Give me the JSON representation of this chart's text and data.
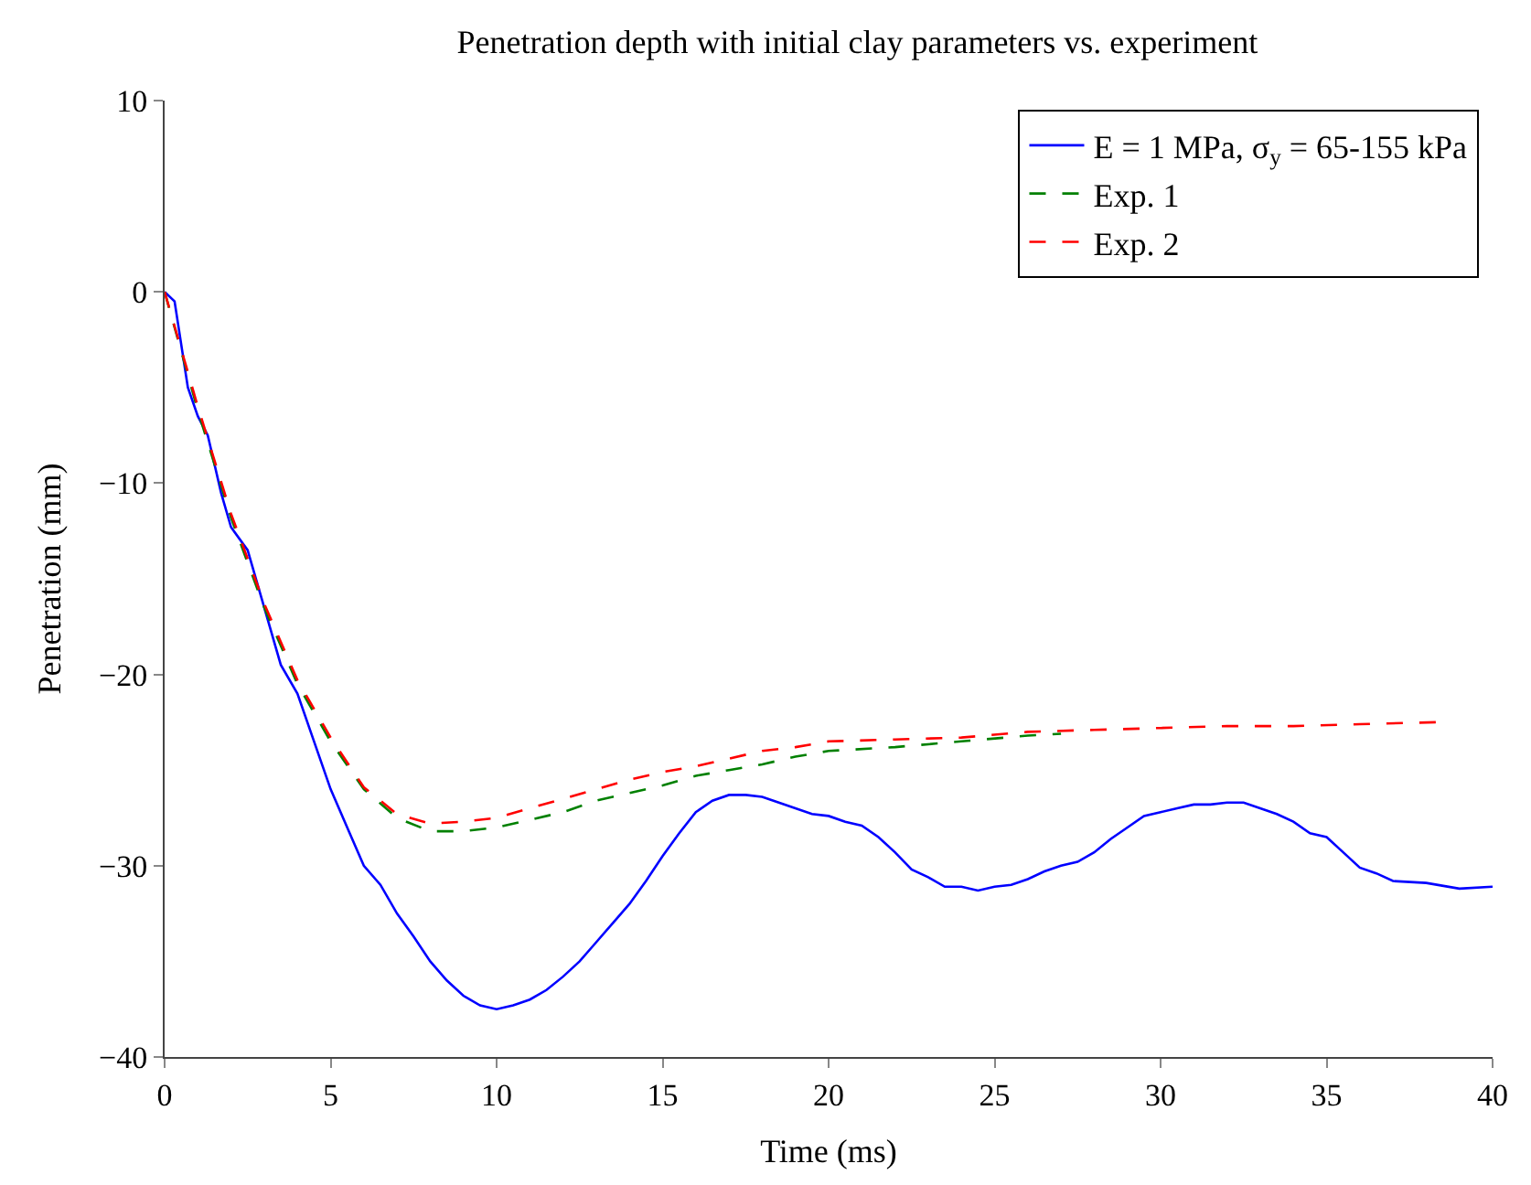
{
  "chart_data": {
    "type": "line",
    "title": "Penetration depth with initial clay parameters vs. experiment",
    "xlabel": "Time (ms)",
    "ylabel": "Penetration (mm)",
    "xlim": [
      0,
      40
    ],
    "ylim": [
      -40,
      10
    ],
    "xticks": [
      0,
      5,
      10,
      15,
      20,
      25,
      30,
      35,
      40
    ],
    "yticks": [
      -40,
      -30,
      -20,
      -10,
      0,
      10
    ],
    "legend": "top right",
    "series": [
      {
        "name": "E = 1 MPa, σ$_{y}$ = 65-155 kPa",
        "color": "#0000ff",
        "line_style": "solid",
        "x": [
          0,
          0.3,
          0.7,
          1,
          1.3,
          1.7,
          2,
          2.5,
          3,
          3.5,
          4,
          4.5,
          5,
          5.5,
          6,
          6.5,
          7,
          7.5,
          8,
          8.5,
          9,
          9.5,
          10,
          10.5,
          11,
          11.5,
          12,
          12.5,
          13,
          13.5,
          14,
          14.5,
          15,
          15.5,
          16,
          16.5,
          17,
          17.5,
          18,
          18.5,
          19,
          19.5,
          20,
          20.5,
          21,
          21.5,
          22,
          22.5,
          23,
          23.5,
          24,
          24.5,
          25,
          25.5,
          26,
          26.5,
          27,
          27.5,
          28,
          28.5,
          29,
          29.5,
          30,
          30.5,
          31,
          31.5,
          32,
          32.5,
          33,
          33.5,
          34,
          34.5,
          35,
          35.5,
          36,
          36.5,
          37,
          38,
          39,
          40
        ],
        "values": [
          0,
          -0.5,
          -5,
          -6.5,
          -7.5,
          -10.5,
          -12.3,
          -13.5,
          -16.5,
          -19.5,
          -21,
          -23.5,
          -26,
          -28,
          -30,
          -31,
          -32.5,
          -33.7,
          -35,
          -36,
          -36.8,
          -37.3,
          -37.5,
          -37.3,
          -37,
          -36.5,
          -35.8,
          -35,
          -34,
          -33,
          -32,
          -30.8,
          -29.5,
          -28.3,
          -27.2,
          -26.6,
          -26.3,
          -26.3,
          -26.4,
          -26.7,
          -27,
          -27.3,
          -27.4,
          -27.7,
          -27.9,
          -28.5,
          -29.3,
          -30.2,
          -30.6,
          -31.1,
          -31.1,
          -31.3,
          -31.1,
          -31,
          -30.7,
          -30.3,
          -30,
          -29.8,
          -29.3,
          -28.6,
          -28,
          -27.4,
          -27.2,
          -27,
          -26.8,
          -26.8,
          -26.7,
          -26.7,
          -27,
          -27.3,
          -27.7,
          -28.3,
          -28.5,
          -29.3,
          -30.1,
          -30.4,
          -30.8,
          -30.9,
          -31.2,
          -31.1
        ]
      },
      {
        "name": "Exp. 1",
        "color": "#008000",
        "line_style": "dashed",
        "x": [
          0,
          1,
          2,
          3,
          4,
          5,
          6,
          7,
          8,
          9,
          10,
          11,
          12,
          13,
          14,
          15,
          16,
          17,
          18,
          19,
          20,
          22,
          24,
          26,
          27
        ],
        "values": [
          0,
          -6.2,
          -11.8,
          -16.5,
          -20.5,
          -23.5,
          -26,
          -27.5,
          -28.2,
          -28.2,
          -28,
          -27.6,
          -27.2,
          -26.6,
          -26.2,
          -25.8,
          -25.3,
          -25,
          -24.7,
          -24.3,
          -24,
          -23.8,
          -23.5,
          -23.2,
          -23.1
        ]
      },
      {
        "name": "Exp. 2",
        "color": "#ff0000",
        "line_style": "dashed",
        "x": [
          0,
          1,
          2,
          3,
          4,
          5,
          6,
          7,
          8,
          9,
          10,
          11,
          12,
          13,
          14,
          15,
          16,
          17,
          18,
          19,
          20,
          22,
          24,
          26,
          28,
          30,
          32,
          34,
          36,
          38.3
        ],
        "values": [
          0,
          -6,
          -11.6,
          -16.3,
          -20.3,
          -23.3,
          -25.9,
          -27.3,
          -27.8,
          -27.7,
          -27.5,
          -27,
          -26.5,
          -26,
          -25.5,
          -25.1,
          -24.8,
          -24.4,
          -24,
          -23.8,
          -23.5,
          -23.4,
          -23.3,
          -23,
          -22.9,
          -22.8,
          -22.7,
          -22.7,
          -22.6,
          -22.5
        ]
      }
    ]
  }
}
